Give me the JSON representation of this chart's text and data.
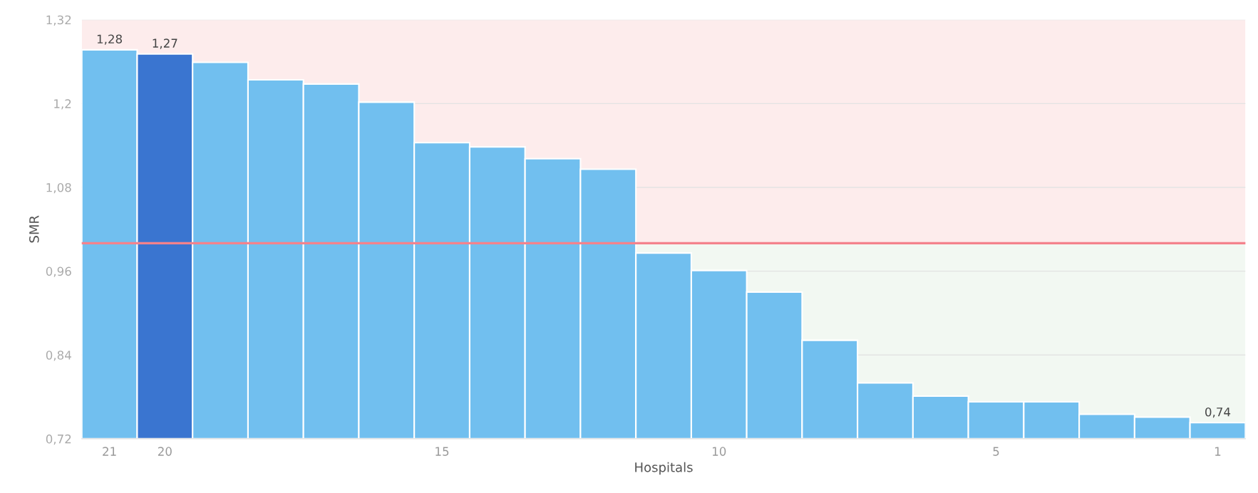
{
  "chart_data": {
    "type": "bar",
    "categories": [
      "21",
      "20",
      null,
      null,
      null,
      null,
      "15",
      null,
      null,
      null,
      null,
      "10",
      null,
      null,
      null,
      null,
      "5",
      null,
      null,
      null,
      "1"
    ],
    "values": [
      1.277,
      1.271,
      1.259,
      1.234,
      1.228,
      1.202,
      1.144,
      1.138,
      1.121,
      1.106,
      0.986,
      0.961,
      0.93,
      0.861,
      0.8,
      0.781,
      0.773,
      0.773,
      0.755,
      0.751,
      0.743
    ],
    "colors": [
      "#71bfef",
      "#3a75d0",
      "#71bfef",
      "#71bfef",
      "#71bfef",
      "#71bfef",
      "#71bfef",
      "#71bfef",
      "#71bfef",
      "#71bfef",
      "#71bfef",
      "#71bfef",
      "#71bfef",
      "#71bfef",
      "#71bfef",
      "#71bfef",
      "#71bfef",
      "#71bfef",
      "#71bfef",
      "#71bfef",
      "#71bfef"
    ],
    "value_labels": [
      "1,28",
      "1,27",
      null,
      null,
      null,
      null,
      null,
      null,
      null,
      null,
      null,
      null,
      null,
      null,
      null,
      null,
      null,
      null,
      null,
      null,
      "0,74"
    ],
    "xlabel": "Hospitals",
    "ylabel": "SMR",
    "ylim": [
      0.72,
      1.32
    ],
    "yticks": [
      {
        "value": 0.72,
        "label": "0,72"
      },
      {
        "value": 0.84,
        "label": "0,84"
      },
      {
        "value": 0.96,
        "label": "0,96"
      },
      {
        "value": 1.08,
        "label": "1,08"
      },
      {
        "value": 1.2,
        "label": "1,2"
      },
      {
        "value": 1.32,
        "label": "1,32"
      }
    ],
    "grid": "y",
    "ref_lines": [
      {
        "axis": "y",
        "value": 1.0,
        "color": "#f4828c"
      }
    ],
    "bands": [
      {
        "axis": "y",
        "from": 1.0,
        "to": 1.32,
        "color": "#fdecec"
      },
      {
        "axis": "y",
        "from": 0.72,
        "to": 1.0,
        "color": "#f2f8f2"
      }
    ]
  }
}
